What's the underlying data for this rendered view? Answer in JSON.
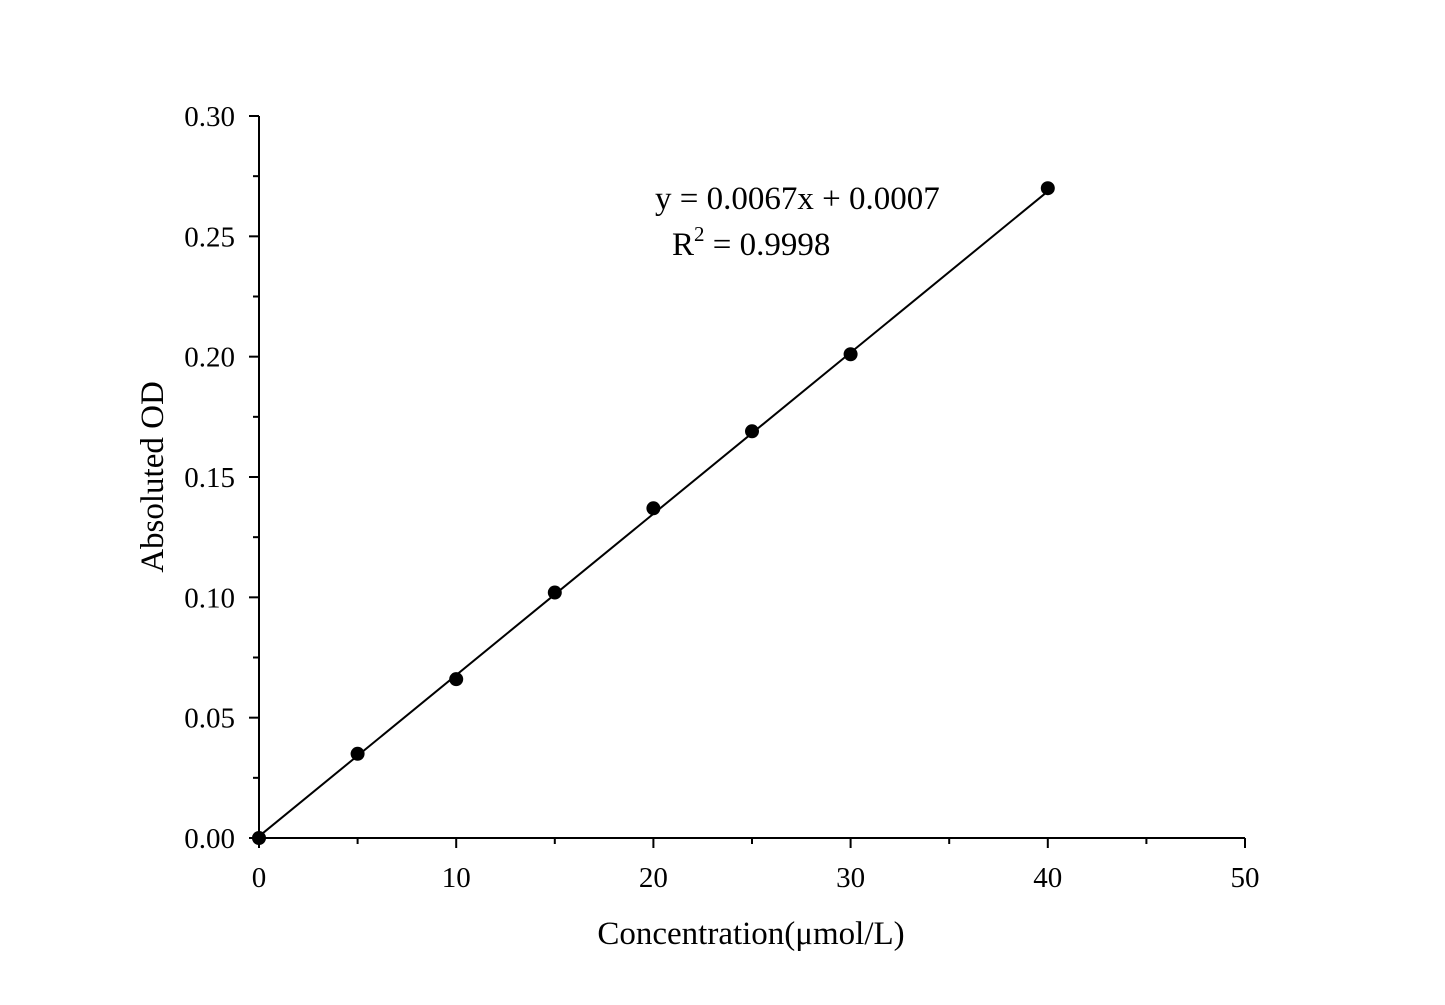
{
  "chart_data": {
    "type": "scatter",
    "xlabel": "Concentration(μmol/L)",
    "ylabel": "Absoluted OD",
    "xlim": [
      0,
      50
    ],
    "ylim": [
      0,
      0.3
    ],
    "x_ticks": [
      "0",
      "10",
      "20",
      "30",
      "40",
      "50"
    ],
    "y_ticks": [
      "0.00",
      "0.05",
      "0.10",
      "0.15",
      "0.20",
      "0.25",
      "0.30"
    ],
    "grid": false,
    "series": [
      {
        "x": [
          0,
          5,
          10,
          15,
          20,
          25,
          30,
          40
        ],
        "y": [
          0.0,
          0.035,
          0.066,
          0.102,
          0.137,
          0.169,
          0.201,
          0.27
        ]
      }
    ],
    "fit_line": {
      "slope": 0.0067,
      "intercept": 0.0007,
      "x_range": [
        0,
        40
      ]
    },
    "annotations": {
      "equation": "y = 0.0067x + 0.0007",
      "r_label": "R",
      "r_sup": "2",
      "r_value": " = 0.9998"
    },
    "colors": {
      "line": "#000000",
      "marker": "#000000"
    }
  }
}
